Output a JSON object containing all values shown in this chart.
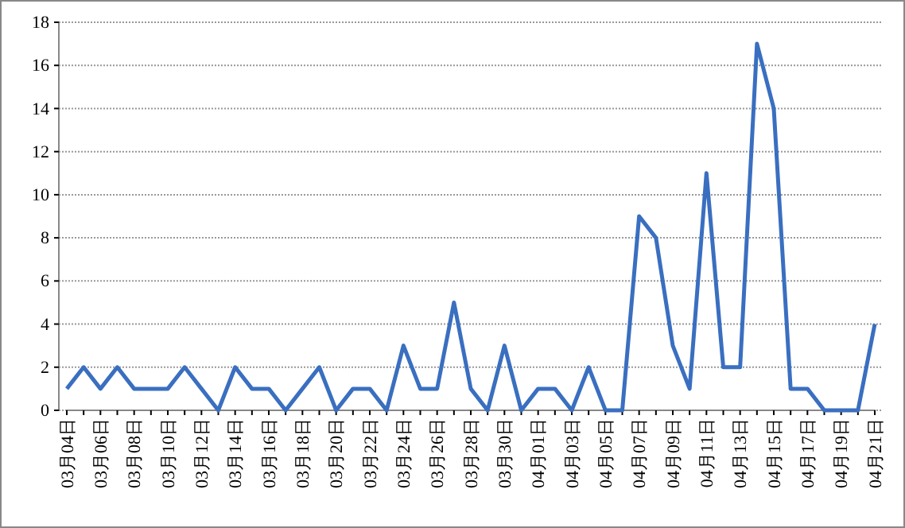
{
  "chart_data": {
    "type": "line",
    "categories": [
      "03月04日",
      null,
      "03月06日",
      null,
      "03月08日",
      null,
      "03月10日",
      null,
      "03月12日",
      null,
      "03月14日",
      null,
      "03月16日",
      null,
      "03月18日",
      null,
      "03月20日",
      null,
      "03月22日",
      null,
      "03月24日",
      null,
      "03月26日",
      null,
      "03月28日",
      null,
      "03月30日",
      null,
      "04月01日",
      null,
      "04月03日",
      null,
      "04月05日",
      null,
      "04月07日",
      null,
      "04月09日",
      null,
      "04月11日",
      null,
      "04月13日",
      null,
      "04月15日",
      null,
      "04月17日",
      null,
      "04月19日",
      null,
      "04月21日"
    ],
    "series": [
      {
        "color": "#3a6fc0",
        "values": [
          1,
          2,
          1,
          2,
          1,
          1,
          1,
          2,
          1,
          0,
          2,
          1,
          1,
          0,
          1,
          2,
          0,
          1,
          1,
          0,
          3,
          1,
          1,
          5,
          1,
          0,
          3,
          0,
          1,
          1,
          0,
          2,
          0,
          0,
          9,
          8,
          3,
          1,
          11,
          2,
          2,
          17,
          14,
          1,
          1,
          0,
          0,
          0,
          4
        ]
      }
    ],
    "ylim": [
      0,
      18
    ],
    "yticks": [
      0,
      2,
      4,
      6,
      8,
      10,
      12,
      14,
      16,
      18
    ],
    "grid": "y",
    "marker": "none",
    "line_style": "solid"
  }
}
